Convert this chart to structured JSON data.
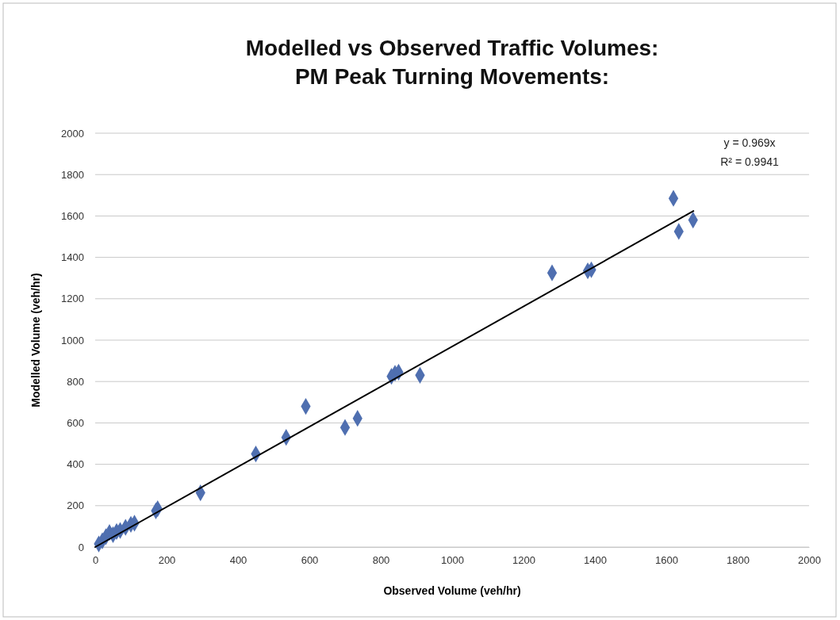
{
  "chart_data": {
    "type": "scatter",
    "title": "Modelled vs Observed Traffic Volumes:\nPM Peak Turning Movements:",
    "xlabel": "Observed Volume (veh/hr)",
    "ylabel": "Modelled Volume (veh/hr)",
    "xlim": [
      0,
      2000
    ],
    "xticks": [
      0,
      200,
      400,
      600,
      800,
      1000,
      1200,
      1400,
      1600,
      1800,
      2000
    ],
    "ylim": [
      0,
      2000
    ],
    "yticks": [
      0,
      200,
      400,
      600,
      800,
      1000,
      1200,
      1400,
      1600,
      1800,
      2000
    ],
    "grid": "y",
    "series": [
      {
        "marker": "diamond",
        "color": "#4f6fb0",
        "x": [
          10,
          20,
          30,
          40,
          50,
          60,
          70,
          85,
          100,
          110,
          170,
          175,
          295,
          450,
          535,
          590,
          700,
          735,
          830,
          840,
          850,
          910,
          1280,
          1380,
          1390,
          1620,
          1635,
          1675
        ],
        "values": [
          15,
          30,
          50,
          70,
          60,
          75,
          80,
          95,
          110,
          115,
          175,
          185,
          262,
          450,
          530,
          680,
          578,
          622,
          825,
          840,
          845,
          830,
          1325,
          1335,
          1340,
          1685,
          1525,
          1580
        ]
      },
      {
        "type": "line",
        "marker": "none",
        "line_style": "solid",
        "color": "#000000",
        "x": [
          0,
          1676
        ],
        "values": [
          0,
          1624
        ]
      }
    ],
    "annotations": [
      "y = 0.969x",
      "R² = 0.9941"
    ]
  }
}
